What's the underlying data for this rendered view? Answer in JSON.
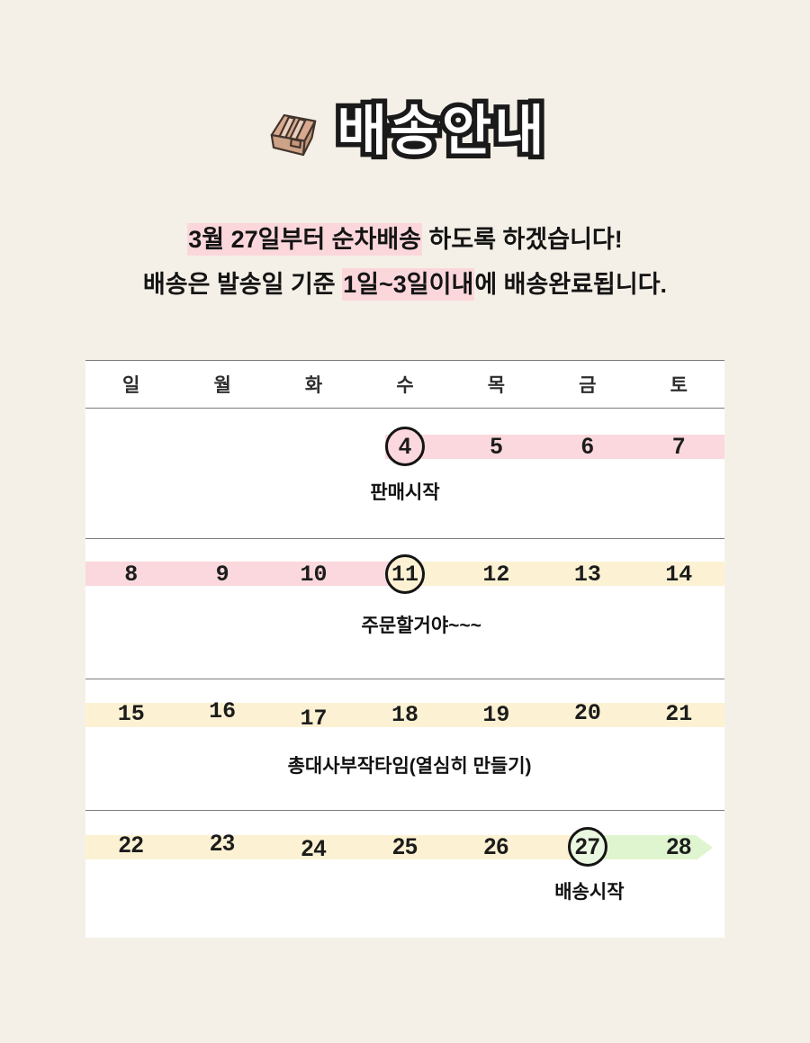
{
  "colors": {
    "page_bg": "#F5F0E7",
    "calendar_bg": "#FFFFFF",
    "pink": "#FAD8DD",
    "highlight_pink": "#FBD7DC",
    "cream": "#FCF2D3",
    "green": "#DFF5D0",
    "green_light": "#E9F8DF",
    "line": "#7C7C7C",
    "box_top": "#D9A98F",
    "box_front": "#CEA287",
    "box_side": "#C89578",
    "box_stripe": "#E9CFBD",
    "box_outline": "#42352C"
  },
  "header": {
    "title": "배송안내",
    "icon": "package-box-icon"
  },
  "notice": {
    "line1": [
      {
        "text": "3월 27일부터 순차배송",
        "highlight": true
      },
      {
        "text": " 하도록 하겠습니다!",
        "highlight": false
      }
    ],
    "line2": [
      {
        "text": "배송은 발송일 기준 ",
        "highlight": false
      },
      {
        "text": "1일~3일이내",
        "highlight": true
      },
      {
        "text": "에 배송완료됩니다.",
        "highlight": false
      }
    ]
  },
  "calendar": {
    "weekdays": [
      "일",
      "월",
      "화",
      "수",
      "목",
      "금",
      "토"
    ],
    "weekday_names": [
      "sun",
      "mon",
      "tue",
      "wed",
      "thu",
      "fri",
      "sat"
    ],
    "weeks": [
      {
        "days": [
          "",
          "",
          "",
          "4",
          "5",
          "6",
          "7"
        ],
        "digit_font": "sans",
        "circles": [
          {
            "col": 3,
            "fill": "pink"
          }
        ],
        "bands": [
          {
            "from": 3.28,
            "to": 7,
            "color": "pink"
          }
        ],
        "label": {
          "text": "판매시작",
          "col": 3.5
        }
      },
      {
        "days": [
          "8",
          "9",
          "10",
          "11",
          "12",
          "13",
          "14"
        ],
        "digit_font": "mono",
        "circles": [
          {
            "col": 3,
            "fill": "cream"
          }
        ],
        "bands": [
          {
            "from": 0,
            "to": 3.5,
            "color": "pink"
          },
          {
            "from": 3.5,
            "to": 7,
            "color": "cream"
          }
        ],
        "label": {
          "text": "주문할거야~~~",
          "col": 3.68
        }
      },
      {
        "days": [
          "15",
          "16",
          "17",
          "18",
          "19",
          "20",
          "21"
        ],
        "digit_font": "mono",
        "circles": [],
        "bands": [
          {
            "from": 0,
            "to": 7,
            "color": "cream"
          }
        ],
        "label": {
          "text": "총대사부작타임(열심히 만들기)",
          "col": 3.55
        }
      },
      {
        "days": [
          "22",
          "23",
          "24",
          "25",
          "26",
          "27",
          "28"
        ],
        "digit_font": "sans",
        "circles": [
          {
            "col": 5,
            "fill": "green_light"
          }
        ],
        "bands": [
          {
            "from": 0,
            "to": 5.5,
            "color": "cream"
          },
          {
            "from": 5.5,
            "to": 6.68,
            "color": "green",
            "arrow": true
          }
        ],
        "label": {
          "text": "배송시작",
          "col": 5.52
        }
      }
    ]
  }
}
